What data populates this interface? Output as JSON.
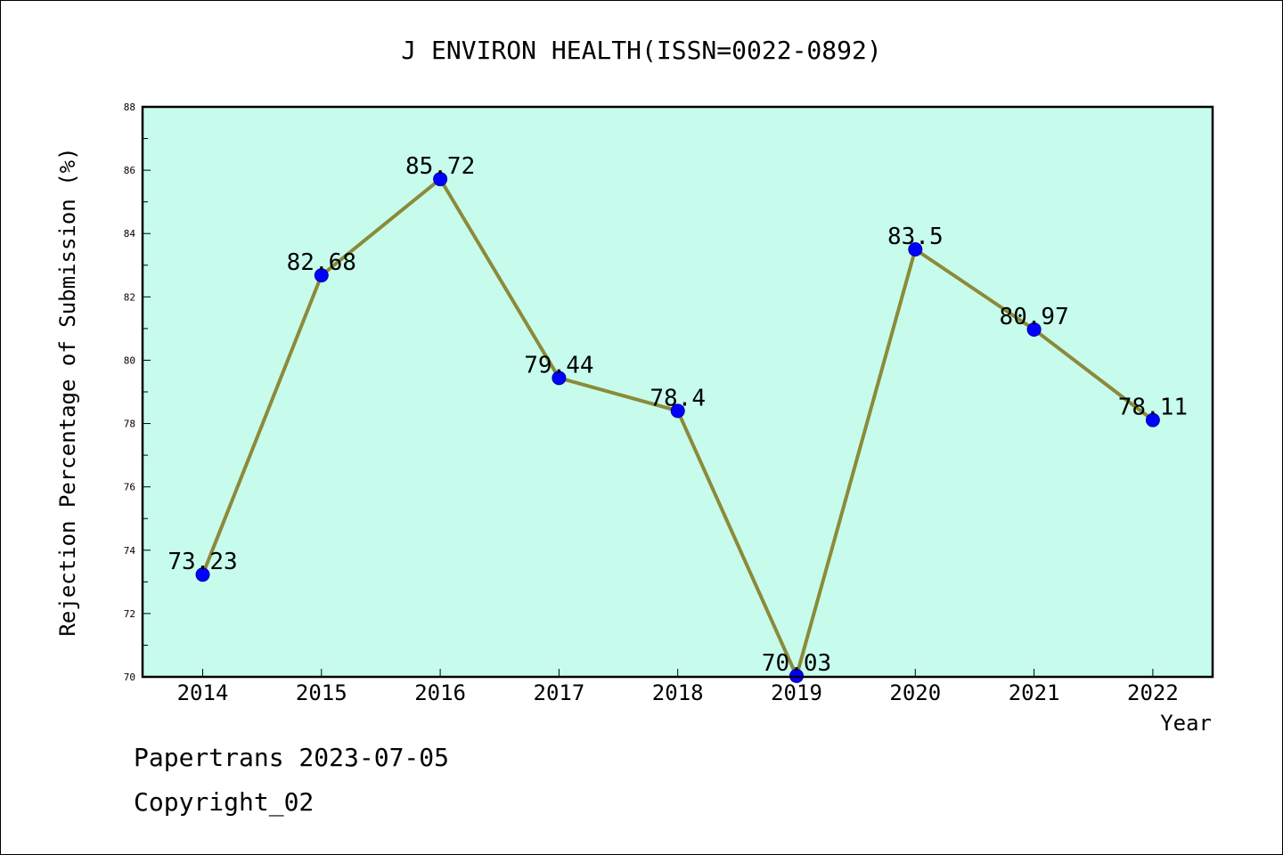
{
  "chart_data": {
    "type": "line",
    "title": "J ENVIRON HEALTH(ISSN=0022-0892)",
    "xlabel": "Year",
    "ylabel": "Rejection Percentage of Submission (%)",
    "categories": [
      "2014",
      "2015",
      "2016",
      "2017",
      "2018",
      "2019",
      "2020",
      "2021",
      "2022"
    ],
    "values": [
      73.23,
      82.68,
      85.72,
      79.44,
      78.4,
      70.03,
      83.5,
      80.97,
      78.11
    ],
    "value_labels": [
      "73.23",
      "82.68",
      "85.72",
      "79.44",
      "78.4",
      "70.03",
      "83.5",
      "80.97",
      "78.11"
    ],
    "ylim": [
      70,
      88
    ],
    "yticks": [
      "70",
      "72",
      "74",
      "76",
      "78",
      "80",
      "82",
      "84",
      "86",
      "88"
    ],
    "grid": false,
    "colors": {
      "plot_background": "#c7fcec",
      "line": "#8c8a3a",
      "marker": "#0000ff"
    }
  },
  "footer": {
    "line1": "Papertrans 2023-07-05",
    "line2": "Copyright_02"
  }
}
